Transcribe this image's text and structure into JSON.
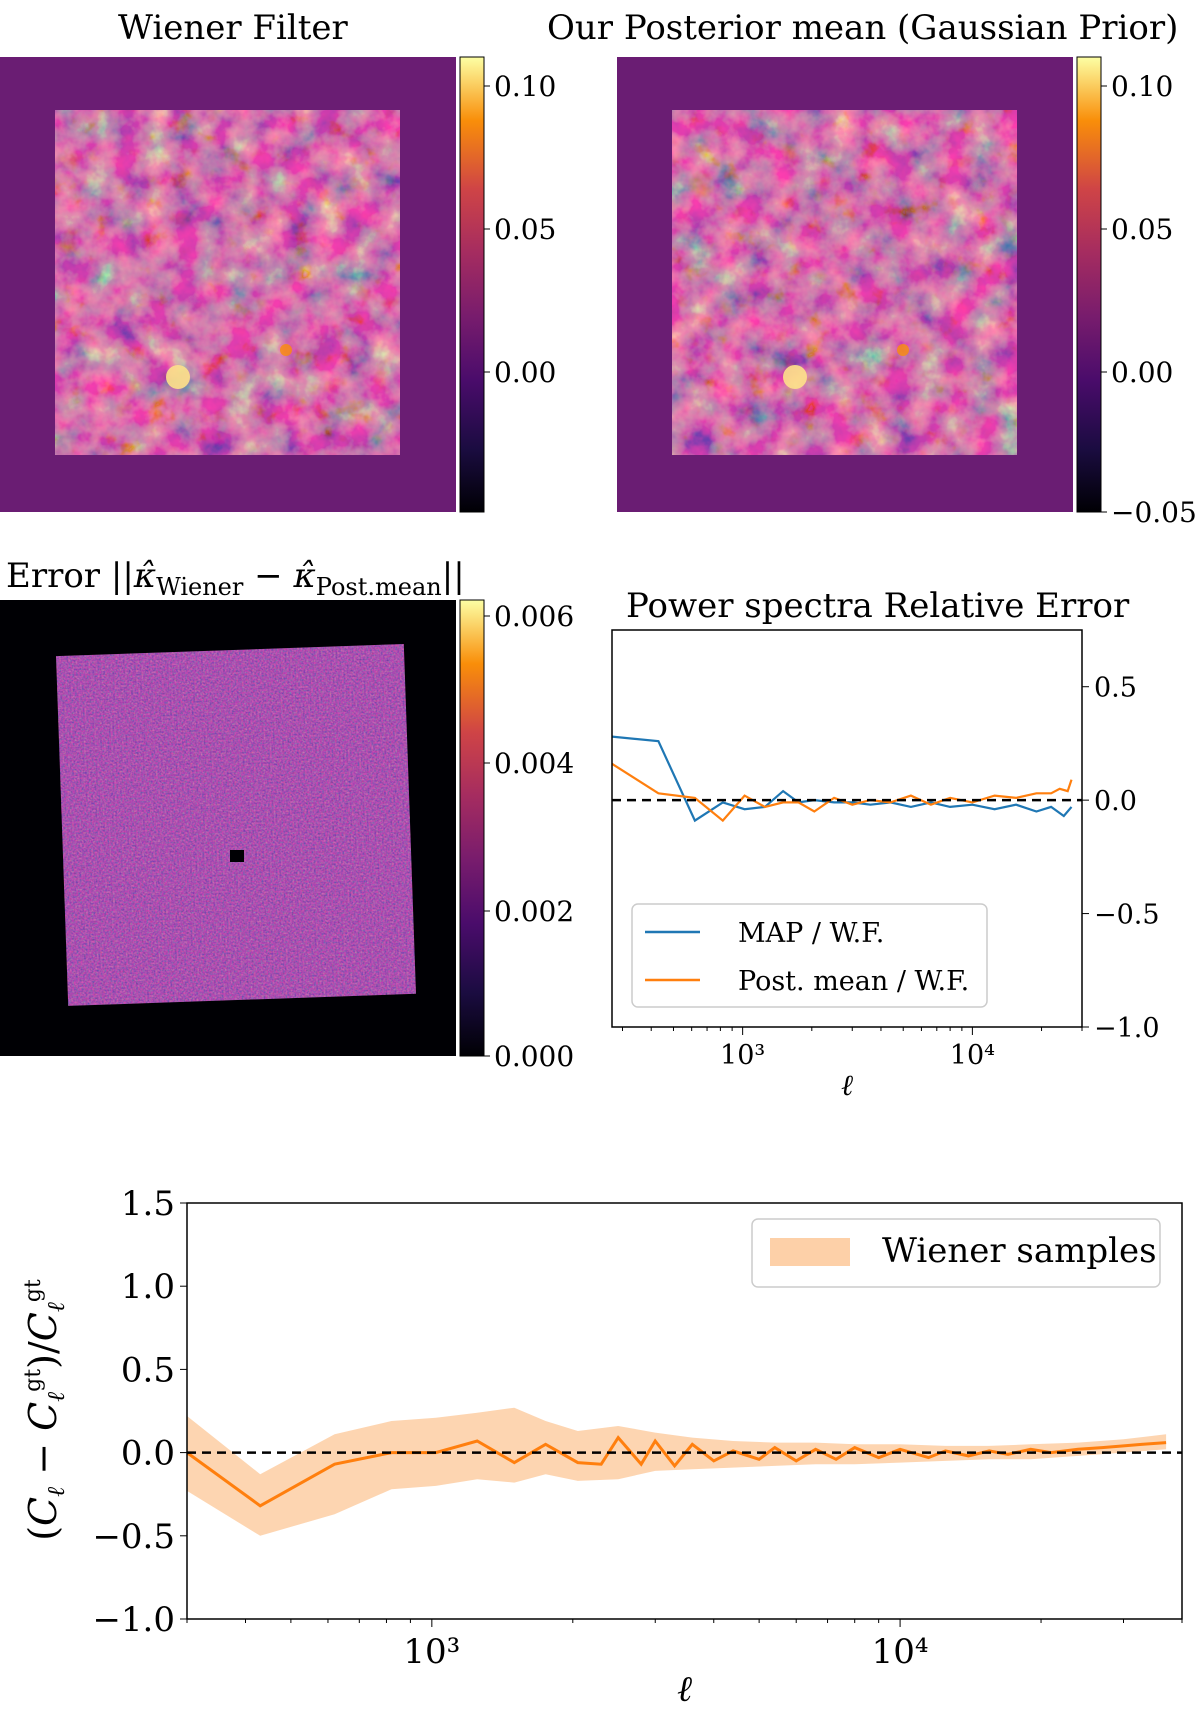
{
  "titles": {
    "wiener": "Wiener Filter",
    "posterior": "Our Posterior mean (Gaussian Prior)",
    "error_prefix": "Error",
    "power": "Power spectra Relative Error"
  },
  "error_title_parts": {
    "kappa": "κ̂",
    "sub_wiener": "Wiener",
    "sub_post": "Post.mean",
    "minus": "−",
    "bar": "||"
  },
  "colors": {
    "blue": "#1f77b4",
    "orange": "#ff7f0e",
    "band": "#fdd0a8"
  },
  "colorbars": {
    "cb1": [
      "0.10",
      "0.05",
      "0.00"
    ],
    "cb2": [
      "0.10",
      "0.05",
      "0.00",
      "−0.05"
    ],
    "cb3": [
      "0.006",
      "0.004",
      "0.002",
      "0.000"
    ]
  },
  "chart_data": [
    {
      "id": "power_spectra_relative_error",
      "type": "line",
      "title": "Power spectra Relative Error",
      "xlabel": "ℓ",
      "ylabel": "",
      "xscale": "log",
      "xlim": [
        270,
        30000
      ],
      "ylim": [
        -1.0,
        0.75
      ],
      "yticks": [
        "0.5",
        "0.0",
        "−0.5",
        "−1.0"
      ],
      "xticks": [
        "10³",
        "10⁴"
      ],
      "legend_location": "lower-left",
      "series": [
        {
          "name": "MAP / W.F.",
          "color": "#1f77b4",
          "x": [
            270,
            430,
            620,
            820,
            1020,
            1250,
            1500,
            1750,
            2050,
            2500,
            3000,
            3600,
            4400,
            5400,
            6600,
            8000,
            10000,
            12500,
            15500,
            19000,
            22000,
            25000,
            27000
          ],
          "y": [
            0.28,
            0.26,
            -0.09,
            -0.01,
            -0.04,
            -0.03,
            0.04,
            -0.01,
            0.0,
            -0.01,
            -0.01,
            -0.02,
            -0.01,
            -0.03,
            -0.01,
            -0.03,
            -0.02,
            -0.04,
            -0.02,
            -0.05,
            -0.03,
            -0.07,
            -0.03
          ]
        },
        {
          "name": "Post. mean / W.F.",
          "color": "#ff7f0e",
          "x": [
            270,
            430,
            620,
            820,
            1020,
            1250,
            1500,
            1750,
            2050,
            2500,
            3000,
            3600,
            4400,
            5400,
            6600,
            8000,
            10000,
            12500,
            15500,
            19000,
            22000,
            24000,
            26000,
            27000
          ],
          "y": [
            0.16,
            0.03,
            0.01,
            -0.09,
            0.02,
            -0.03,
            -0.01,
            -0.01,
            -0.05,
            0.01,
            -0.02,
            0.0,
            -0.01,
            0.02,
            -0.02,
            0.01,
            -0.01,
            0.02,
            0.01,
            0.03,
            0.03,
            0.05,
            0.04,
            0.09
          ]
        },
        {
          "name": "reference",
          "style": "dashed",
          "color": "#000000",
          "x": [
            270,
            30000
          ],
          "y": [
            0.0,
            0.0
          ]
        }
      ]
    },
    {
      "id": "wiener_samples_relative_error",
      "type": "area",
      "title": "",
      "xlabel": "ℓ",
      "ylabel": "(C_ℓ − C_ℓ^gt) / C_ℓ^gt",
      "xscale": "log",
      "xlim": [
        300,
        40000
      ],
      "ylim": [
        -1.0,
        1.5
      ],
      "yticks": [
        "1.5",
        "1.0",
        "0.5",
        "0.0",
        "−0.5",
        "−1.0"
      ],
      "xticks": [
        "10³",
        "10⁴"
      ],
      "legend_location": "top-right",
      "legend": [
        "Wiener samples"
      ],
      "series": [
        {
          "name": "Wiener samples",
          "kind": "band",
          "color": "#fdd0a8",
          "x": [
            300,
            430,
            620,
            820,
            1020,
            1250,
            1500,
            1750,
            2050,
            2500,
            3000,
            3600,
            4400,
            5400,
            6600,
            8000,
            10000,
            12500,
            15500,
            19000,
            24000,
            30000,
            37000
          ],
          "upper": [
            0.22,
            -0.13,
            0.11,
            0.19,
            0.21,
            0.24,
            0.27,
            0.19,
            0.13,
            0.16,
            0.12,
            0.09,
            0.07,
            0.06,
            0.06,
            0.05,
            0.05,
            0.04,
            0.04,
            0.05,
            0.06,
            0.08,
            0.11
          ],
          "lower": [
            -0.23,
            -0.5,
            -0.37,
            -0.22,
            -0.2,
            -0.16,
            -0.18,
            -0.13,
            -0.17,
            -0.16,
            -0.11,
            -0.1,
            -0.09,
            -0.08,
            -0.07,
            -0.07,
            -0.06,
            -0.05,
            -0.04,
            -0.04,
            -0.02,
            0.0,
            0.02
          ]
        },
        {
          "name": "mean",
          "color": "#ff7f0e",
          "x": [
            300,
            430,
            620,
            820,
            1020,
            1250,
            1500,
            1750,
            2050,
            2300,
            2500,
            2800,
            3000,
            3300,
            3600,
            4000,
            4400,
            5000,
            5400,
            6000,
            6600,
            7300,
            8000,
            9000,
            10000,
            11500,
            12500,
            14000,
            15500,
            17000,
            19000,
            21000,
            24000,
            27000,
            30000,
            33000,
            37000
          ],
          "y": [
            0.0,
            -0.32,
            -0.07,
            0.0,
            0.0,
            0.07,
            -0.06,
            0.05,
            -0.06,
            -0.07,
            0.09,
            -0.07,
            0.07,
            -0.08,
            0.05,
            -0.05,
            0.01,
            -0.04,
            0.03,
            -0.05,
            0.02,
            -0.04,
            0.03,
            -0.03,
            0.02,
            -0.03,
            0.01,
            -0.02,
            0.01,
            -0.01,
            0.02,
            0.0,
            0.02,
            0.03,
            0.04,
            0.05,
            0.06
          ]
        },
        {
          "name": "reference",
          "style": "dashed",
          "color": "#000000",
          "x": [
            300,
            40000
          ],
          "y": [
            0.0,
            0.0
          ]
        }
      ]
    }
  ]
}
